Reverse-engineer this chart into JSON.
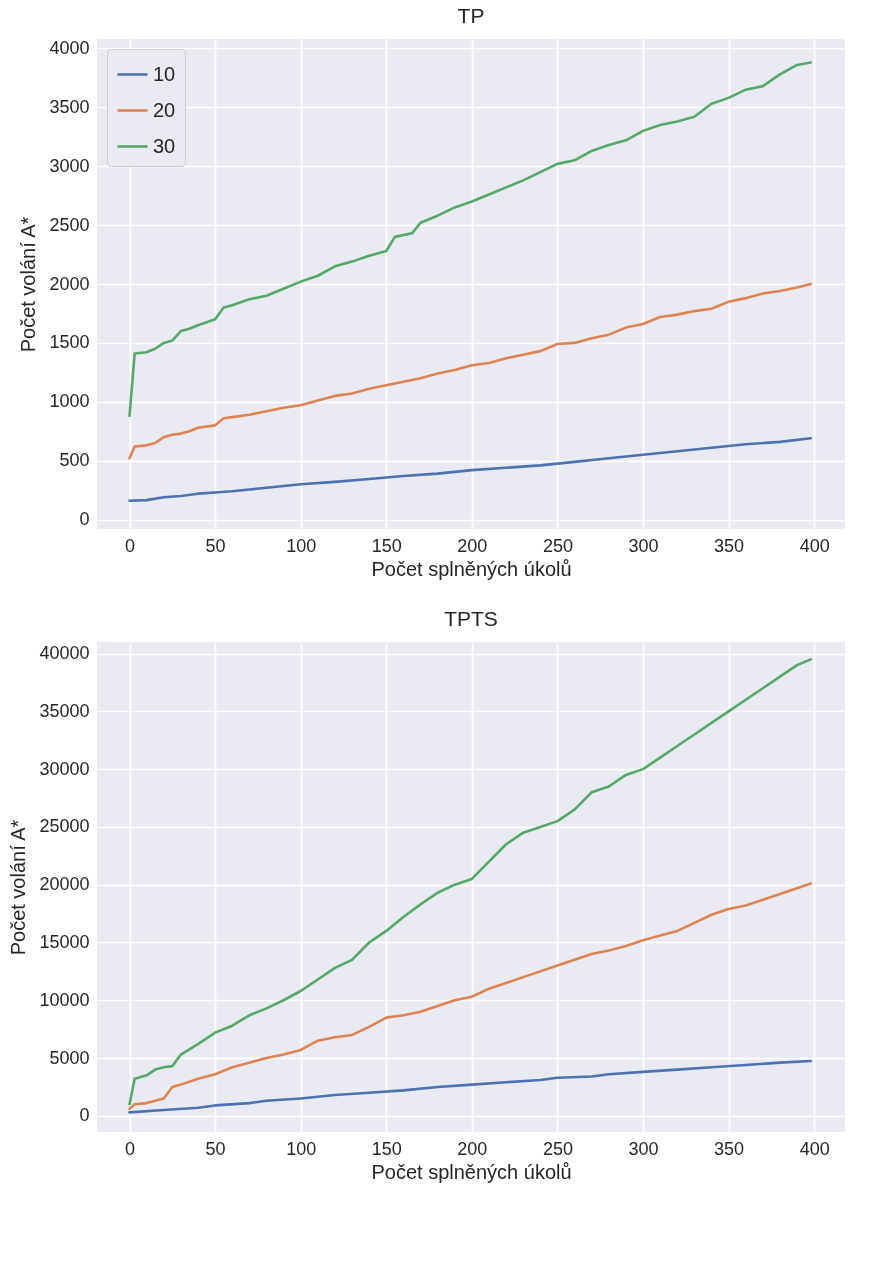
{
  "chart_data": [
    {
      "type": "line",
      "title": "TP",
      "xlabel": "Počet splněných úkolů",
      "ylabel": "Počet volání A*",
      "xlim": [
        -19,
        418
      ],
      "xticks": [
        0,
        50,
        100,
        150,
        200,
        250,
        300,
        350,
        400
      ],
      "ylim": [
        -80,
        4080
      ],
      "yticks": [
        0,
        500,
        1000,
        1500,
        2000,
        2500,
        3000,
        3500,
        4000
      ],
      "grid": true,
      "legend": "top left",
      "series": [
        {
          "name": "10",
          "color": "#4c72b0",
          "x": [
            0,
            10,
            20,
            30,
            40,
            50,
            60,
            70,
            80,
            90,
            100,
            120,
            140,
            160,
            180,
            200,
            220,
            240,
            260,
            280,
            300,
            320,
            340,
            360,
            380,
            398
          ],
          "values": [
            160,
            165,
            190,
            200,
            220,
            230,
            240,
            255,
            270,
            285,
            300,
            320,
            345,
            370,
            390,
            420,
            440,
            460,
            490,
            520,
            550,
            580,
            610,
            640,
            660,
            690
          ]
        },
        {
          "name": "20",
          "color": "#dd8452",
          "x": [
            0,
            3,
            10,
            15,
            20,
            25,
            30,
            35,
            40,
            50,
            55,
            60,
            70,
            80,
            90,
            100,
            110,
            120,
            130,
            140,
            150,
            160,
            170,
            180,
            190,
            200,
            210,
            220,
            230,
            240,
            250,
            260,
            270,
            280,
            290,
            300,
            310,
            320,
            330,
            340,
            350,
            360,
            370,
            380,
            390,
            398
          ],
          "values": [
            520,
            620,
            630,
            650,
            700,
            720,
            730,
            750,
            780,
            800,
            860,
            870,
            890,
            920,
            950,
            970,
            1010,
            1050,
            1070,
            1110,
            1140,
            1170,
            1200,
            1240,
            1270,
            1310,
            1330,
            1370,
            1400,
            1430,
            1490,
            1500,
            1540,
            1570,
            1630,
            1660,
            1720,
            1740,
            1770,
            1790,
            1850,
            1880,
            1920,
            1940,
            1970,
            2000
          ]
        },
        {
          "name": "30",
          "color": "#55a868",
          "x": [
            0,
            3,
            10,
            15,
            20,
            25,
            30,
            35,
            40,
            50,
            55,
            60,
            70,
            80,
            90,
            100,
            110,
            120,
            130,
            140,
            150,
            155,
            165,
            170,
            180,
            190,
            200,
            210,
            220,
            230,
            240,
            250,
            260,
            270,
            280,
            290,
            300,
            310,
            320,
            330,
            340,
            350,
            360,
            370,
            380,
            390,
            398
          ],
          "values": [
            880,
            1410,
            1420,
            1450,
            1500,
            1520,
            1600,
            1620,
            1650,
            1700,
            1800,
            1820,
            1870,
            1900,
            1960,
            2020,
            2070,
            2150,
            2190,
            2240,
            2280,
            2400,
            2430,
            2520,
            2580,
            2650,
            2700,
            2760,
            2820,
            2880,
            2950,
            3020,
            3050,
            3130,
            3180,
            3220,
            3300,
            3350,
            3380,
            3420,
            3530,
            3580,
            3650,
            3680,
            3780,
            3860,
            3880
          ]
        }
      ]
    },
    {
      "type": "line",
      "title": "TPTS",
      "xlabel": "Počet splněných úkolů",
      "ylabel": "Počet volání A*",
      "xlim": [
        -19,
        418
      ],
      "xticks": [
        0,
        50,
        100,
        150,
        200,
        250,
        300,
        350,
        400
      ],
      "ylim": [
        -1400,
        41000
      ],
      "yticks": [
        0,
        5000,
        10000,
        15000,
        20000,
        25000,
        30000,
        35000,
        40000
      ],
      "grid": true,
      "legend": "top left",
      "series": [
        {
          "name": "10",
          "color": "#4c72b0",
          "x": [
            0,
            20,
            40,
            50,
            70,
            80,
            100,
            120,
            140,
            160,
            180,
            200,
            220,
            240,
            250,
            270,
            280,
            300,
            320,
            340,
            360,
            380,
            398
          ],
          "values": [
            300,
            500,
            700,
            900,
            1100,
            1300,
            1500,
            1800,
            2000,
            2200,
            2500,
            2700,
            2900,
            3100,
            3300,
            3400,
            3600,
            3800,
            4000,
            4200,
            4400,
            4600,
            4750
          ]
        },
        {
          "name": "20",
          "color": "#dd8452",
          "x": [
            0,
            3,
            10,
            20,
            25,
            30,
            40,
            50,
            60,
            70,
            80,
            90,
            100,
            110,
            120,
            130,
            140,
            150,
            160,
            170,
            180,
            190,
            200,
            210,
            220,
            230,
            240,
            250,
            260,
            270,
            280,
            290,
            300,
            310,
            320,
            330,
            340,
            350,
            360,
            370,
            380,
            390,
            398
          ],
          "values": [
            600,
            1000,
            1100,
            1500,
            2500,
            2700,
            3200,
            3600,
            4200,
            4600,
            5000,
            5300,
            5700,
            6500,
            6800,
            7000,
            7700,
            8500,
            8700,
            9000,
            9500,
            10000,
            10300,
            11000,
            11500,
            12000,
            12500,
            13000,
            13500,
            14000,
            14300,
            14700,
            15200,
            15600,
            16000,
            16700,
            17400,
            17900,
            18200,
            18700,
            19200,
            19700,
            20100
          ]
        },
        {
          "name": "30",
          "color": "#55a868",
          "x": [
            0,
            3,
            10,
            15,
            20,
            25,
            30,
            40,
            50,
            60,
            70,
            80,
            90,
            100,
            110,
            120,
            130,
            140,
            150,
            160,
            170,
            180,
            190,
            200,
            210,
            220,
            230,
            240,
            250,
            260,
            270,
            280,
            290,
            300,
            310,
            320,
            330,
            340,
            350,
            360,
            370,
            380,
            390,
            398
          ],
          "values": [
            1000,
            3200,
            3500,
            4000,
            4200,
            4300,
            5300,
            6200,
            7200,
            7800,
            8700,
            9300,
            10000,
            10800,
            11800,
            12800,
            13500,
            15000,
            16000,
            17200,
            18300,
            19300,
            20000,
            20500,
            22000,
            23500,
            24500,
            25000,
            25500,
            26500,
            28000,
            28500,
            29500,
            30000,
            31000,
            32000,
            33000,
            34000,
            35000,
            36000,
            37000,
            38000,
            39000,
            39500
          ]
        }
      ]
    }
  ]
}
